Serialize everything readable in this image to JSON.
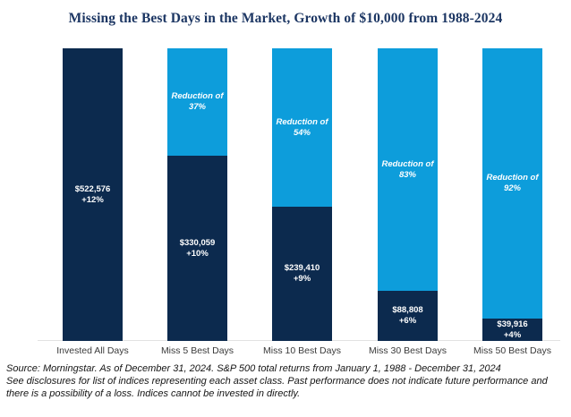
{
  "title": "Missing the Best Days in the Market, Growth of $10,000 from 1988-2024",
  "chart_data": {
    "type": "bar",
    "title": "Missing the Best Days in the Market, Growth of $10,000 from 1988-2024",
    "categories": [
      "Invested All Days",
      "Miss 5 Best Days",
      "Miss 10 Best Days",
      "Miss 30 Best Days",
      "Miss 50 Best Days"
    ],
    "values": [
      522576,
      330059,
      239410,
      88808,
      39916
    ],
    "value_labels": [
      "$522,576",
      "$330,059",
      "$239,410",
      "$88,808",
      "$39,916"
    ],
    "return_labels": [
      "+12%",
      "+10%",
      "+9%",
      "+6%",
      "+4%"
    ],
    "reduction_prefix": "Reduction of",
    "reduction_pcts": [
      null,
      "37%",
      "54%",
      "83%",
      "92%"
    ],
    "ylim": [
      0,
      522576
    ],
    "grid": false,
    "legend": "none",
    "colors": {
      "invested_segment": "#0C2A4E",
      "missed_segment": "#0D9DDB",
      "segment_label_text": "#FFFFFF",
      "title_text": "#1C3663",
      "axis_line": "#E2E2E2",
      "category_text": "#3A3A3A"
    }
  },
  "footer": {
    "lines": [
      "Source: Morningstar. As of December 31, 2024. S&P 500 total returns from January 1, 1988 - December 31, 2024",
      "See disclosures for list of indices representing each asset class. Past performance does not indicate future performance and",
      "there is a possibility of a loss. Indices cannot be invested in directly."
    ]
  }
}
